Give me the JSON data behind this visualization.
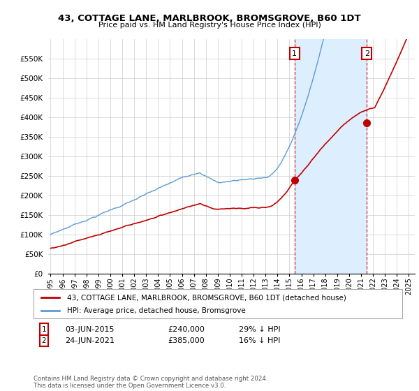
{
  "title": "43, COTTAGE LANE, MARLBROOK, BROMSGROVE, B60 1DT",
  "subtitle": "Price paid vs. HM Land Registry's House Price Index (HPI)",
  "ylabel_ticks": [
    "£0",
    "£50K",
    "£100K",
    "£150K",
    "£200K",
    "£250K",
    "£300K",
    "£350K",
    "£400K",
    "£450K",
    "£500K",
    "£550K"
  ],
  "ytick_values": [
    0,
    50000,
    100000,
    150000,
    200000,
    250000,
    300000,
    350000,
    400000,
    450000,
    500000,
    550000
  ],
  "ylim": [
    0,
    600000
  ],
  "xlim_start": 1994.8,
  "xlim_end": 2025.5,
  "hpi_color": "#5b9bd5",
  "price_color": "#c00000",
  "shade_color": "#ddeeff",
  "sale1_date": 2015.42,
  "sale1_price": 240000,
  "sale2_date": 2021.48,
  "sale2_price": 385000,
  "legend_red_label": "43, COTTAGE LANE, MARLBROOK, BROMSGROVE, B60 1DT (detached house)",
  "legend_blue_label": "HPI: Average price, detached house, Bromsgrove",
  "annotation1_text": "03-JUN-2015",
  "annotation1_price": "£240,000",
  "annotation1_pct": "29% ↓ HPI",
  "annotation2_text": "24-JUN-2021",
  "annotation2_price": "£385,000",
  "annotation2_pct": "16% ↓ HPI",
  "footer": "Contains HM Land Registry data © Crown copyright and database right 2024.\nThis data is licensed under the Open Government Licence v3.0.",
  "background_color": "#ffffff",
  "grid_color": "#cccccc"
}
